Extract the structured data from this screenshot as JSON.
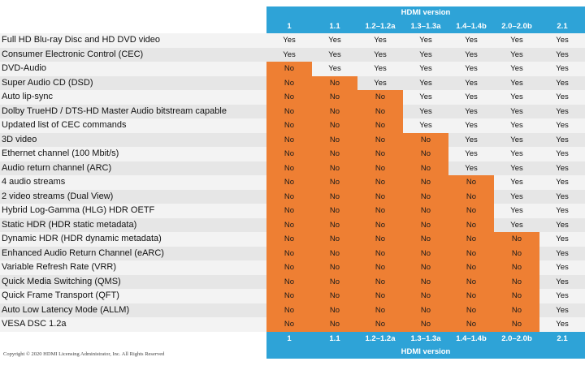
{
  "header_title": "HDMI version",
  "footer_title": "HDMI version",
  "copyright": "Copyright © 2020 HDMI Licensing Administrator, Inc. All Rights Reserved",
  "versions": [
    "1",
    "1.1",
    "1.2–1.2a",
    "1.3–1.3a",
    "1.4–1.4b",
    "2.0–2.0b",
    "2.1"
  ],
  "colors": {
    "header_blue": "#2ea3d7",
    "no_orange": "#ee7f33",
    "row_light": "#f3f3f3",
    "row_dark": "#e6e6e6"
  },
  "rows": [
    {
      "feature": "Full HD Blu-ray Disc and HD DVD video",
      "values": [
        "Yes",
        "Yes",
        "Yes",
        "Yes",
        "Yes",
        "Yes",
        "Yes"
      ]
    },
    {
      "feature": "Consumer Electronic Control (CEC)",
      "values": [
        "Yes",
        "Yes",
        "Yes",
        "Yes",
        "Yes",
        "Yes",
        "Yes"
      ]
    },
    {
      "feature": "DVD-Audio",
      "values": [
        "No",
        "Yes",
        "Yes",
        "Yes",
        "Yes",
        "Yes",
        "Yes"
      ]
    },
    {
      "feature": "Super Audio CD (DSD)",
      "values": [
        "No",
        "No",
        "Yes",
        "Yes",
        "Yes",
        "Yes",
        "Yes"
      ]
    },
    {
      "feature": "Auto lip-sync",
      "values": [
        "No",
        "No",
        "No",
        "Yes",
        "Yes",
        "Yes",
        "Yes"
      ]
    },
    {
      "feature": "Dolby TrueHD / DTS-HD Master Audio bitstream capable",
      "values": [
        "No",
        "No",
        "No",
        "Yes",
        "Yes",
        "Yes",
        "Yes"
      ]
    },
    {
      "feature": "Updated list of CEC commands",
      "values": [
        "No",
        "No",
        "No",
        "Yes",
        "Yes",
        "Yes",
        "Yes"
      ]
    },
    {
      "feature": "3D video",
      "values": [
        "No",
        "No",
        "No",
        "No",
        "Yes",
        "Yes",
        "Yes"
      ]
    },
    {
      "feature": "Ethernet channel (100 Mbit/s)",
      "values": [
        "No",
        "No",
        "No",
        "No",
        "Yes",
        "Yes",
        "Yes"
      ]
    },
    {
      "feature": "Audio return channel (ARC)",
      "values": [
        "No",
        "No",
        "No",
        "No",
        "Yes",
        "Yes",
        "Yes"
      ]
    },
    {
      "feature": "4 audio streams",
      "values": [
        "No",
        "No",
        "No",
        "No",
        "No",
        "Yes",
        "Yes"
      ]
    },
    {
      "feature": "2 video streams (Dual View)",
      "values": [
        "No",
        "No",
        "No",
        "No",
        "No",
        "Yes",
        "Yes"
      ]
    },
    {
      "feature": "Hybrid Log-Gamma (HLG) HDR OETF",
      "values": [
        "No",
        "No",
        "No",
        "No",
        "No",
        "Yes",
        "Yes"
      ]
    },
    {
      "feature": "Static HDR (HDR static metadata)",
      "values": [
        "No",
        "No",
        "No",
        "No",
        "No",
        "Yes",
        "Yes"
      ]
    },
    {
      "feature": "Dynamic HDR (HDR dynamic metadata)",
      "values": [
        "No",
        "No",
        "No",
        "No",
        "No",
        "No",
        "Yes"
      ]
    },
    {
      "feature": "Enhanced Audio Return Channel (eARC)",
      "values": [
        "No",
        "No",
        "No",
        "No",
        "No",
        "No",
        "Yes"
      ]
    },
    {
      "feature": "Variable Refresh Rate (VRR)",
      "values": [
        "No",
        "No",
        "No",
        "No",
        "No",
        "No",
        "Yes"
      ]
    },
    {
      "feature": "Quick Media Switching (QMS)",
      "values": [
        "No",
        "No",
        "No",
        "No",
        "No",
        "No",
        "Yes"
      ]
    },
    {
      "feature": "Quick Frame Transport (QFT)",
      "values": [
        "No",
        "No",
        "No",
        "No",
        "No",
        "No",
        "Yes"
      ]
    },
    {
      "feature": "Auto Low Latency Mode (ALLM)",
      "values": [
        "No",
        "No",
        "No",
        "No",
        "No",
        "No",
        "Yes"
      ]
    },
    {
      "feature": "VESA DSC 1.2a",
      "values": [
        "No",
        "No",
        "No",
        "No",
        "No",
        "No",
        "Yes"
      ]
    }
  ]
}
